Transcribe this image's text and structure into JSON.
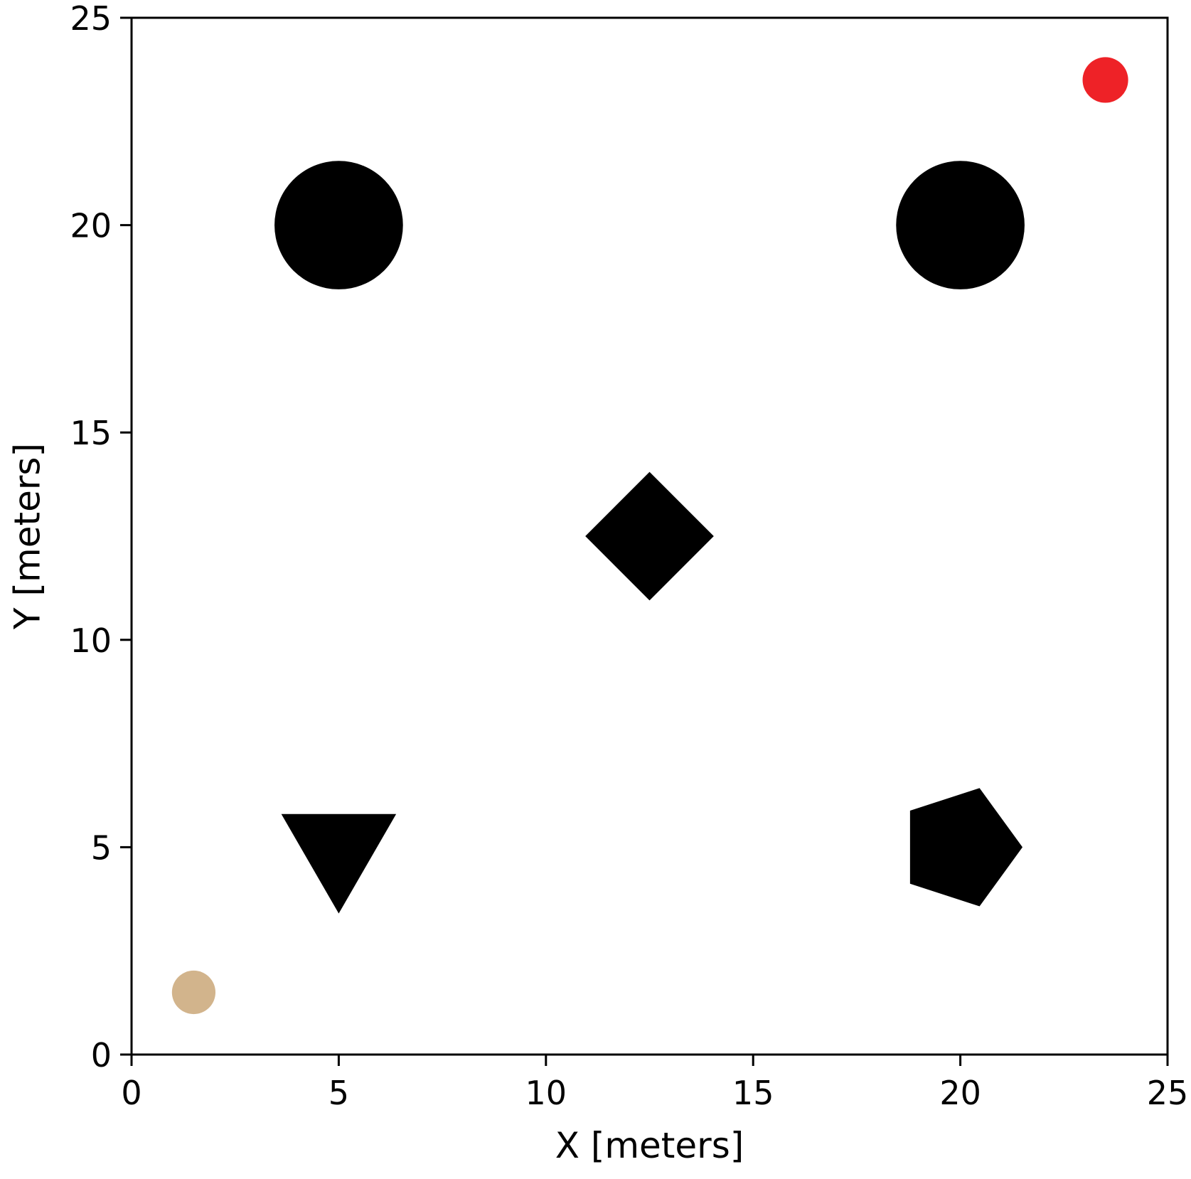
{
  "chart_data": {
    "type": "scatter",
    "title": "",
    "xlabel": "X [meters]",
    "ylabel": "Y [meters]",
    "xlim": [
      0,
      25
    ],
    "ylim": [
      0,
      25
    ],
    "xticks": [
      0,
      5,
      10,
      15,
      20,
      25
    ],
    "yticks": [
      0,
      5,
      10,
      15,
      20,
      25
    ],
    "grid": false,
    "legend": "none",
    "points": [
      {
        "id": "obstacle-circle-1",
        "shape": "circle",
        "x": 5,
        "y": 20,
        "size_m": 3.1,
        "color": "#000000"
      },
      {
        "id": "obstacle-circle-2",
        "shape": "circle",
        "x": 20,
        "y": 20,
        "size_m": 3.1,
        "color": "#000000"
      },
      {
        "id": "obstacle-diamond",
        "shape": "diamond",
        "x": 12.5,
        "y": 12.5,
        "size_m": 3.1,
        "color": "#000000"
      },
      {
        "id": "obstacle-triangle",
        "shape": "triangle-down",
        "x": 5,
        "y": 5,
        "size_m": 3.2,
        "color": "#000000"
      },
      {
        "id": "obstacle-pentagon",
        "shape": "pentagon",
        "x": 20,
        "y": 5,
        "size_m": 3.0,
        "color": "#000000"
      },
      {
        "id": "start-point",
        "shape": "circle",
        "x": 1.5,
        "y": 1.5,
        "size_m": 1.05,
        "color": "#D2B48C"
      },
      {
        "id": "goal-point",
        "shape": "circle",
        "x": 23.5,
        "y": 23.5,
        "size_m": 1.1,
        "color": "#EE2227"
      }
    ]
  }
}
